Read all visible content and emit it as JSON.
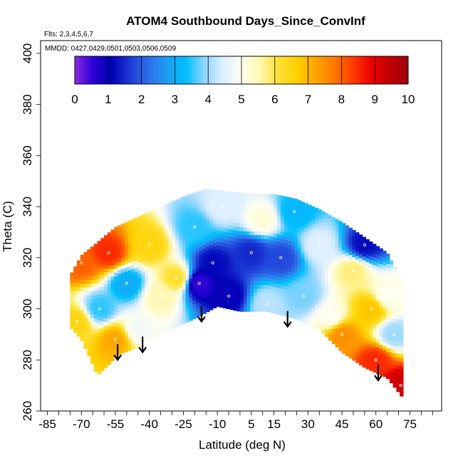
{
  "chart_data": {
    "type": "heatmap",
    "title": "ATOM4 Southbound Days_Since_ConvInf",
    "flights_label": "Flts: 2,3,4,5,6,7",
    "dates_label": "MMDD: 0427,0429,0501,0503,0506,0509",
    "xlabel": "Latitude (deg N)",
    "ylabel": "Theta (C)",
    "xlim": [
      -88,
      89
    ],
    "ylim": [
      260,
      405
    ],
    "x_ticks": [
      -85,
      -70,
      -55,
      -40,
      -25,
      -10,
      5,
      15,
      30,
      45,
      60,
      75
    ],
    "x_minor_step": 5,
    "y_ticks": [
      260,
      280,
      300,
      320,
      340,
      360,
      380,
      400
    ],
    "colorbar": {
      "range": [
        0,
        10
      ],
      "ticks": [
        "0",
        "1",
        "2",
        "3",
        "4",
        "5",
        "6",
        "7",
        "8",
        "9",
        "10"
      ],
      "stops": [
        "#8a2be2",
        "#2a00d5",
        "#0000b4",
        "#1c3cd6",
        "#2f6fe8",
        "#1e9ef2",
        "#00bfff",
        "#8fd6ff",
        "#ddeeff",
        "#fffff0",
        "#fff7b0",
        "#ffe135",
        "#ffd000",
        "#ffa500",
        "#ff7a00",
        "#ff3c00",
        "#ee0000",
        "#c00000",
        "#a00010"
      ]
    },
    "sampled_cells": [
      {
        "lat": -72,
        "theta": 295,
        "value": 6.5
      },
      {
        "lat": -70,
        "theta": 318,
        "value": 8.0
      },
      {
        "lat": -62,
        "theta": 300,
        "value": 3.5
      },
      {
        "lat": -58,
        "theta": 322,
        "value": 8.5
      },
      {
        "lat": -55,
        "theta": 288,
        "value": 7.2
      },
      {
        "lat": -50,
        "theta": 310,
        "value": 3.0
      },
      {
        "lat": -45,
        "theta": 292,
        "value": 4.8
      },
      {
        "lat": -40,
        "theta": 325,
        "value": 6.5
      },
      {
        "lat": -35,
        "theta": 305,
        "value": 5.5
      },
      {
        "lat": -28,
        "theta": 312,
        "value": 6.2
      },
      {
        "lat": -20,
        "theta": 332,
        "value": 3.5
      },
      {
        "lat": -18,
        "theta": 310,
        "value": 0.5
      },
      {
        "lat": -12,
        "theta": 318,
        "value": 1.2
      },
      {
        "lat": -5,
        "theta": 305,
        "value": 1.0
      },
      {
        "lat": -8,
        "theta": 340,
        "value": 4.5
      },
      {
        "lat": 5,
        "theta": 322,
        "value": 1.5
      },
      {
        "lat": 10,
        "theta": 335,
        "value": 5.2
      },
      {
        "lat": 12,
        "theta": 302,
        "value": 4.2
      },
      {
        "lat": 18,
        "theta": 320,
        "value": 1.8
      },
      {
        "lat": 24,
        "theta": 338,
        "value": 3.2
      },
      {
        "lat": 28,
        "theta": 305,
        "value": 3.8
      },
      {
        "lat": 35,
        "theta": 325,
        "value": 4.5
      },
      {
        "lat": 40,
        "theta": 297,
        "value": 5.0
      },
      {
        "lat": 45,
        "theta": 290,
        "value": 7.5
      },
      {
        "lat": 50,
        "theta": 315,
        "value": 5.8
      },
      {
        "lat": 55,
        "theta": 325,
        "value": 1.2
      },
      {
        "lat": 58,
        "theta": 300,
        "value": 6.8
      },
      {
        "lat": 60,
        "theta": 280,
        "value": 8.5
      },
      {
        "lat": 65,
        "theta": 305,
        "value": 5.0
      },
      {
        "lat": 68,
        "theta": 290,
        "value": 4.0
      },
      {
        "lat": 71,
        "theta": 270,
        "value": 9.3
      }
    ],
    "arrows": [
      {
        "lat": -54,
        "theta": 280
      },
      {
        "lat": -43,
        "theta": 283
      },
      {
        "lat": -17,
        "theta": 295
      },
      {
        "lat": 21,
        "theta": 293
      },
      {
        "lat": 61,
        "theta": 272
      }
    ]
  }
}
